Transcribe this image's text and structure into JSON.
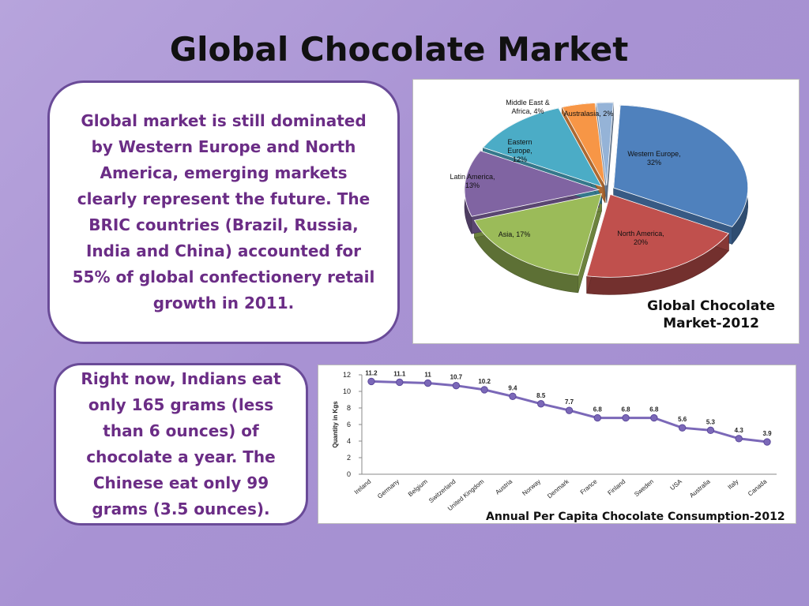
{
  "slide": {
    "title": "Global Chocolate Market",
    "box1_text": "Global market is still dominated by Western Europe and North America, emerging markets clearly represent the future. The BRIC countries (Brazil, Russia, India and China) accounted for 55% of global confectionery retail growth in 2011.",
    "box2_text": "Right now, Indians eat only 165 grams (less than 6 ounces) of chocolate a year. The Chinese eat only 99 grams (3.5 ounces)."
  },
  "chart_data": [
    {
      "type": "pie",
      "title_line1": "Global Chocolate",
      "title_line2": "Market-2012",
      "slices": [
        {
          "name": "Western Europe",
          "value": 32,
          "color": "#4f81bd"
        },
        {
          "name": "North America",
          "value": 20,
          "color": "#c0504d"
        },
        {
          "name": "Asia",
          "value": 17,
          "color": "#9bbb59"
        },
        {
          "name": "Latin America",
          "value": 13,
          "color": "#8064a2"
        },
        {
          "name": "Eastern Europe",
          "value": 12,
          "color": "#4bacc6"
        },
        {
          "name": "Middle East & Africa",
          "value": 4,
          "color": "#f79646"
        },
        {
          "name": "Australasia",
          "value": 2,
          "color": "#95b3d7"
        }
      ]
    },
    {
      "type": "line",
      "title": "Annual Per Capita Chocolate Consumption-2012",
      "ylabel": "Quantity in Kgs",
      "ylim": [
        0,
        12
      ],
      "yticks": [
        0,
        2,
        4,
        6,
        8,
        10,
        12
      ],
      "grid": false,
      "categories": [
        "Ireland",
        "Germany",
        "Belgium",
        "Switzerland",
        "United Kingdom",
        "Austria",
        "Norway",
        "Denmark",
        "France",
        "Finland",
        "Sweden",
        "USA",
        "Australia",
        "Italy",
        "Canada"
      ],
      "series": [
        {
          "values": [
            11.2,
            11.1,
            11,
            10.7,
            10.2,
            9.4,
            8.5,
            7.7,
            6.8,
            6.8,
            6.8,
            5.6,
            5.3,
            4.3,
            3.9
          ],
          "color": "#7b68b8"
        }
      ]
    }
  ]
}
